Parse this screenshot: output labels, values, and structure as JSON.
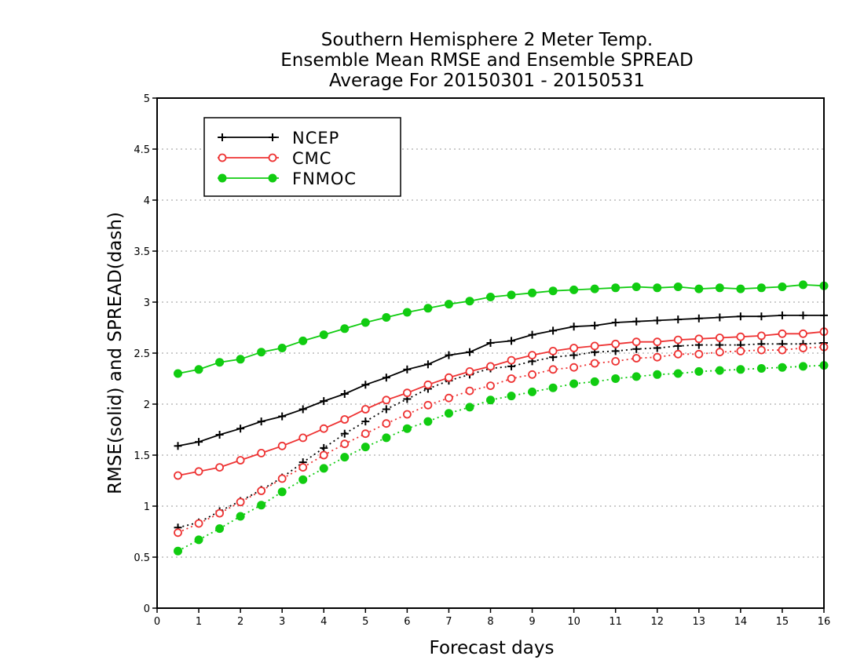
{
  "chart_data": {
    "type": "line",
    "title": [
      "Southern Hemisphere 2 Meter Temp.",
      "Ensemble Mean RMSE and Ensemble SPREAD",
      "Average For 20150301 - 20150531"
    ],
    "xlabel": "Forecast days",
    "ylabel": "RMSE(solid) and SPREAD(dash)",
    "xlim": [
      0,
      16
    ],
    "ylim": [
      0,
      5
    ],
    "xticks": [
      "0",
      "1",
      "2",
      "3",
      "4",
      "5",
      "6",
      "7",
      "8",
      "9",
      "10",
      "11",
      "12",
      "13",
      "14",
      "15",
      "16"
    ],
    "yticks": [
      "0",
      "0.5",
      "1",
      "1.5",
      "2",
      "2.5",
      "3",
      "3.5",
      "4",
      "4.5",
      "5"
    ],
    "grid": "horizontal dotted",
    "legend_position": "top-left",
    "x": [
      0.5,
      1,
      1.5,
      2,
      2.5,
      3,
      3.5,
      4,
      4.5,
      5,
      5.5,
      6,
      6.5,
      7,
      7.5,
      8,
      8.5,
      9,
      9.5,
      10,
      10.5,
      11,
      11.5,
      12,
      12.5,
      13,
      13.5,
      14,
      14.5,
      15,
      15.5,
      16
    ],
    "series": [
      {
        "name": "NCEP",
        "color": "#000000",
        "marker": "plus",
        "rmse": [
          1.59,
          1.63,
          1.7,
          1.76,
          1.83,
          1.88,
          1.95,
          2.03,
          2.1,
          2.19,
          2.26,
          2.34,
          2.39,
          2.48,
          2.51,
          2.6,
          2.62,
          2.68,
          2.72,
          2.76,
          2.77,
          2.8,
          2.81,
          2.82,
          2.83,
          2.84,
          2.85,
          2.86,
          2.86,
          2.87,
          2.87,
          2.87
        ],
        "spread": [
          0.79,
          0.84,
          0.95,
          1.05,
          1.16,
          1.28,
          1.43,
          1.57,
          1.71,
          1.83,
          1.95,
          2.05,
          2.15,
          2.23,
          2.29,
          2.35,
          2.37,
          2.42,
          2.46,
          2.48,
          2.51,
          2.52,
          2.54,
          2.55,
          2.57,
          2.58,
          2.58,
          2.58,
          2.59,
          2.59,
          2.59,
          2.6
        ]
      },
      {
        "name": "CMC",
        "color": "#ee3333",
        "marker": "open-circle",
        "rmse": [
          1.3,
          1.34,
          1.38,
          1.45,
          1.52,
          1.59,
          1.67,
          1.76,
          1.85,
          1.95,
          2.04,
          2.11,
          2.19,
          2.26,
          2.32,
          2.37,
          2.43,
          2.48,
          2.52,
          2.55,
          2.57,
          2.59,
          2.61,
          2.61,
          2.63,
          2.64,
          2.65,
          2.66,
          2.67,
          2.69,
          2.69,
          2.71
        ],
        "spread": [
          0.74,
          0.83,
          0.93,
          1.04,
          1.15,
          1.27,
          1.38,
          1.5,
          1.61,
          1.71,
          1.81,
          1.9,
          1.99,
          2.06,
          2.13,
          2.18,
          2.25,
          2.29,
          2.34,
          2.36,
          2.4,
          2.42,
          2.45,
          2.46,
          2.49,
          2.49,
          2.51,
          2.52,
          2.53,
          2.53,
          2.55,
          2.56
        ]
      },
      {
        "name": "FNMOC",
        "color": "#11cc11",
        "marker": "filled-circle",
        "rmse": [
          2.3,
          2.34,
          2.41,
          2.44,
          2.51,
          2.55,
          2.62,
          2.68,
          2.74,
          2.8,
          2.85,
          2.9,
          2.94,
          2.98,
          3.01,
          3.05,
          3.07,
          3.09,
          3.11,
          3.12,
          3.13,
          3.14,
          3.15,
          3.14,
          3.15,
          3.13,
          3.14,
          3.13,
          3.14,
          3.15,
          3.17,
          3.16
        ],
        "spread": [
          0.56,
          0.67,
          0.78,
          0.9,
          1.01,
          1.14,
          1.26,
          1.37,
          1.48,
          1.58,
          1.67,
          1.76,
          1.83,
          1.91,
          1.97,
          2.04,
          2.08,
          2.12,
          2.16,
          2.2,
          2.22,
          2.25,
          2.27,
          2.29,
          2.3,
          2.32,
          2.33,
          2.34,
          2.35,
          2.36,
          2.37,
          2.38
        ]
      }
    ]
  }
}
